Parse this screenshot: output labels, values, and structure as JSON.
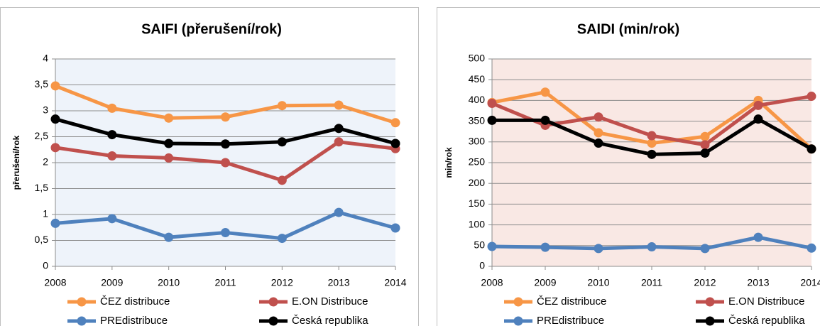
{
  "chart_data": [
    {
      "type": "line",
      "title": "SAIFI (přerušení/rok)",
      "y_label": "přerušení/rok",
      "categories": [
        "2008",
        "2009",
        "2010",
        "2011",
        "2012",
        "2013",
        "2014"
      ],
      "ylim": [
        0,
        4
      ],
      "yticks": [
        0,
        {
          "value": 0.5,
          "label": "0,5"
        },
        1,
        {
          "value": 1.5,
          "label": "1,5"
        },
        2,
        {
          "value": 2.5,
          "label": "2,5"
        },
        3,
        {
          "value": 3.5,
          "label": "3,5"
        },
        4
      ],
      "grid": true,
      "background": "#eef3fa",
      "series": [
        {
          "name": "ČEZ distribuce",
          "color": "#f79646",
          "values": [
            3.48,
            3.05,
            2.86,
            2.88,
            3.1,
            3.11,
            2.77
          ]
        },
        {
          "name": "E.ON Distribuce",
          "color": "#c0504d",
          "values": [
            2.29,
            2.13,
            2.09,
            2.0,
            1.66,
            2.4,
            2.27
          ]
        },
        {
          "name": "PREdistribuce",
          "color": "#4f81bd",
          "values": [
            0.83,
            0.92,
            0.56,
            0.65,
            0.54,
            1.04,
            0.74
          ]
        },
        {
          "name": "Česká republika",
          "color": "#000000",
          "values": [
            2.84,
            2.54,
            2.37,
            2.36,
            2.4,
            2.66,
            2.37
          ]
        }
      ]
    },
    {
      "type": "line",
      "title": "SAIDI (min/rok)",
      "y_label": "min/rok",
      "categories": [
        "2008",
        "2009",
        "2010",
        "2011",
        "2012",
        "2013",
        "2014"
      ],
      "ylim": [
        0,
        500
      ],
      "yticks": [
        0,
        50,
        100,
        150,
        200,
        250,
        300,
        350,
        400,
        450,
        500
      ],
      "grid": true,
      "background": "#f9e8e4",
      "series": [
        {
          "name": "ČEZ distribuce",
          "color": "#f79646",
          "values": [
            395,
            420,
            322,
            297,
            313,
            400,
            283
          ]
        },
        {
          "name": "E.ON Distribuce",
          "color": "#c0504d",
          "values": [
            393,
            340,
            360,
            315,
            293,
            388,
            410
          ]
        },
        {
          "name": "PREdistribuce",
          "color": "#4f81bd",
          "values": [
            48,
            46,
            43,
            47,
            43,
            70,
            44
          ]
        },
        {
          "name": "Česká republika",
          "color": "#000000",
          "values": [
            352,
            352,
            297,
            270,
            273,
            355,
            283
          ]
        }
      ]
    }
  ]
}
